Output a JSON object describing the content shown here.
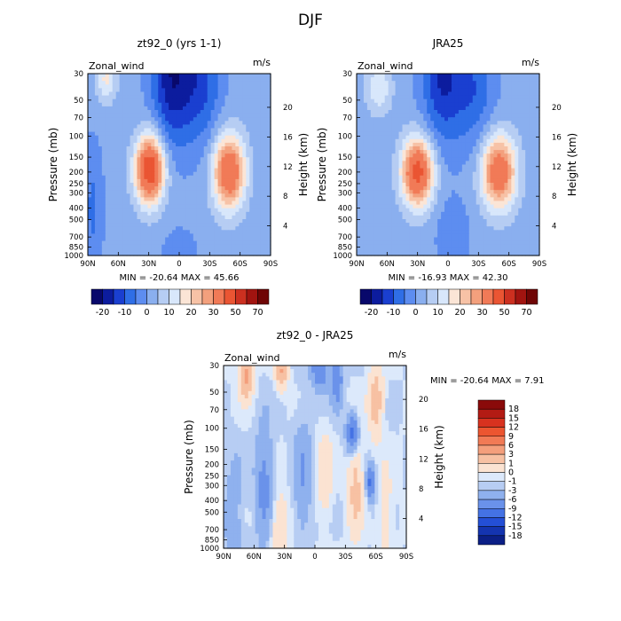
{
  "figure_title": "DJF",
  "chart_data": [
    {
      "type": "heatmap",
      "id": "model",
      "title": "zt92_0 (yrs 1-1)",
      "variable": "Zonal_wind",
      "units": "m/s",
      "xlabel": "",
      "ylabel": "Pressure (mb)",
      "y2label": "Height (km)",
      "x_ticks": [
        "90N",
        "60N",
        "30N",
        "0",
        "30S",
        "60S",
        "90S"
      ],
      "x_range": [
        90,
        -90
      ],
      "y_ticks": [
        30,
        50,
        70,
        100,
        150,
        200,
        250,
        300,
        400,
        500,
        700,
        850,
        1000
      ],
      "y_range": [
        30,
        1000
      ],
      "y2_ticks": [
        4,
        8,
        12,
        16,
        20
      ],
      "min_label": "MIN = -20.64",
      "max_label": "MAX = 45.66",
      "min": -20.64,
      "max": 45.66,
      "jets": [
        {
          "lat": 29,
          "p": 190,
          "value": 45.66
        },
        {
          "lat": -50,
          "p": 200,
          "value": 38
        }
      ],
      "colorbar": {
        "levels": [
          "-20",
          "-10",
          "0",
          "10",
          "20",
          "30",
          "50",
          "70"
        ],
        "colors": [
          "#08086b",
          "#0c1c9e",
          "#1a3fd0",
          "#2f6ee6",
          "#5d8df0",
          "#8aafef",
          "#b6cdf3",
          "#d8e7fb",
          "#fbe5d6",
          "#f7c2a6",
          "#f3a07d",
          "#f17a57",
          "#ea5533",
          "#cc3020",
          "#a11410",
          "#6f0505"
        ]
      }
    },
    {
      "type": "heatmap",
      "id": "obs",
      "title": "JRA25",
      "variable": "Zonal_wind",
      "units": "m/s",
      "xlabel": "",
      "ylabel": "Pressure (mb)",
      "y2label": "Height (km)",
      "x_ticks": [
        "90N",
        "60N",
        "30N",
        "0",
        "30S",
        "60S",
        "90S"
      ],
      "x_range": [
        90,
        -90
      ],
      "y_ticks": [
        30,
        50,
        70,
        100,
        150,
        200,
        250,
        300,
        400,
        500,
        700,
        850,
        1000
      ],
      "y_range": [
        30,
        1000
      ],
      "y2_ticks": [
        4,
        8,
        12,
        16,
        20
      ],
      "min_label": "MIN = -16.93",
      "max_label": "MAX = 42.30",
      "min": -16.93,
      "max": 42.3,
      "jets": [
        {
          "lat": 30,
          "p": 200,
          "value": 42.3
        },
        {
          "lat": -50,
          "p": 200,
          "value": 36
        }
      ],
      "colorbar": {
        "levels": [
          "-20",
          "-10",
          "0",
          "10",
          "20",
          "30",
          "50",
          "70"
        ],
        "colors": [
          "#08086b",
          "#0c1c9e",
          "#1a3fd0",
          "#2f6ee6",
          "#5d8df0",
          "#8aafef",
          "#b6cdf3",
          "#d8e7fb",
          "#fbe5d6",
          "#f7c2a6",
          "#f3a07d",
          "#f17a57",
          "#ea5533",
          "#cc3020",
          "#a11410",
          "#6f0505"
        ]
      }
    },
    {
      "type": "heatmap",
      "id": "diff",
      "title": "zt92_0 - JRA25",
      "variable": "Zonal_wind",
      "units": "m/s",
      "xlabel": "",
      "ylabel": "Pressure (mb)",
      "y2label": "Height (km)",
      "x_ticks": [
        "90N",
        "60N",
        "30N",
        "0",
        "30S",
        "60S",
        "90S"
      ],
      "x_range": [
        90,
        -90
      ],
      "y_ticks": [
        30,
        50,
        70,
        100,
        150,
        200,
        250,
        300,
        400,
        500,
        700,
        850,
        1000
      ],
      "y_range": [
        30,
        1000
      ],
      "y2_ticks": [
        4,
        8,
        12,
        16,
        20
      ],
      "min_label": "MIN = -20.64",
      "max_label": "MAX =    7.91",
      "min": -20.64,
      "max": 7.91,
      "colorbar": {
        "levels": [
          "18",
          "15",
          "12",
          "9",
          "6",
          "3",
          "1",
          "0",
          "-1",
          "-3",
          "-6",
          "-9",
          "-12",
          "-15",
          "-18"
        ],
        "colors": [
          "#8a0a0a",
          "#b31b14",
          "#d8321f",
          "#ec5530",
          "#f17a55",
          "#f49f7c",
          "#f7c1a3",
          "#fbe3d2",
          "#dce9fb",
          "#b7cdf3",
          "#8fb1ee",
          "#6a92ea",
          "#4472e4",
          "#244fd6",
          "#1434b0",
          "#0b1f86"
        ]
      }
    }
  ]
}
